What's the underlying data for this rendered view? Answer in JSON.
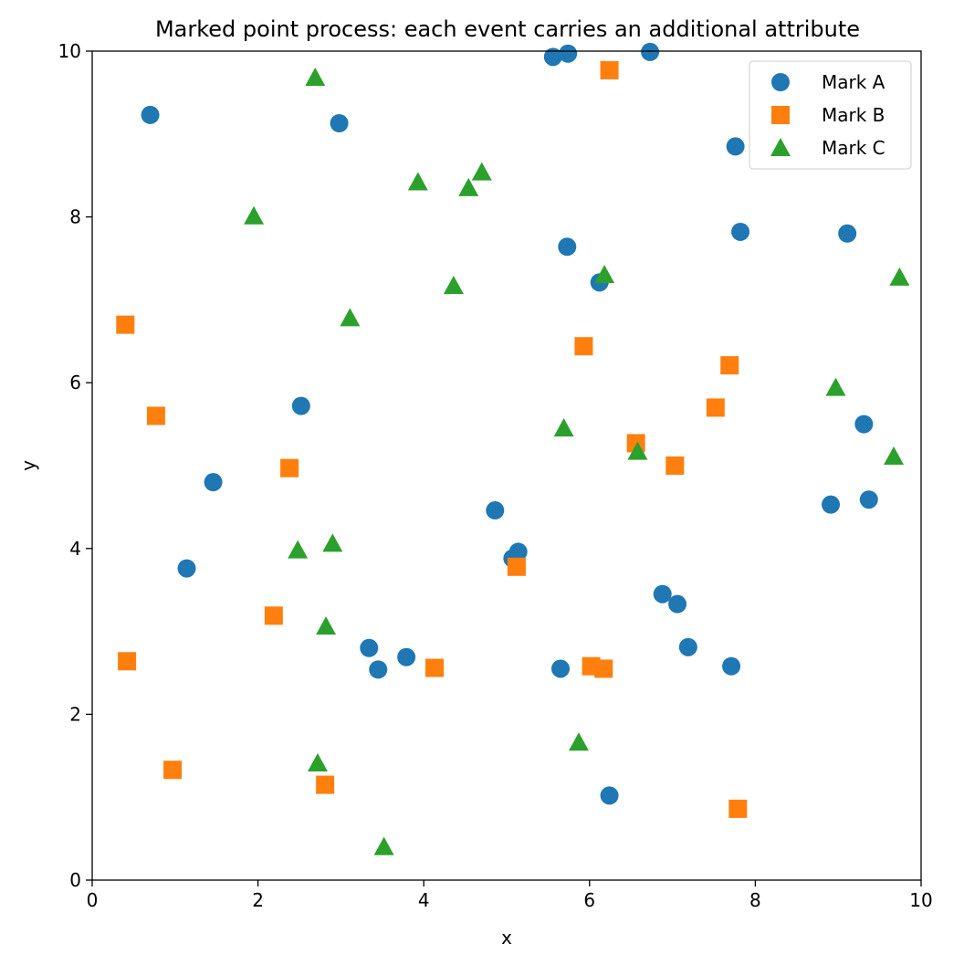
{
  "chart_data": {
    "type": "scatter",
    "title": "Marked point process: each event carries an additional attribute",
    "xlabel": "x",
    "ylabel": "y",
    "xlim": [
      0,
      10
    ],
    "ylim": [
      0,
      10
    ],
    "xticks": [
      "0",
      "2",
      "4",
      "6",
      "8",
      "10"
    ],
    "yticks": [
      "0",
      "2",
      "4",
      "6",
      "8",
      "10"
    ],
    "grid": false,
    "legend_position": "top-right",
    "series": [
      {
        "name": "Mark A",
        "marker": "circle",
        "color": "#1f77b4",
        "points": [
          [
            0.7,
            9.23
          ],
          [
            2.98,
            9.13
          ],
          [
            5.56,
            9.93
          ],
          [
            5.74,
            9.97
          ],
          [
            6.73,
            9.99
          ],
          [
            7.76,
            8.85
          ],
          [
            7.82,
            7.82
          ],
          [
            9.11,
            7.8
          ],
          [
            5.73,
            7.64
          ],
          [
            6.12,
            7.21
          ],
          [
            2.52,
            5.72
          ],
          [
            1.46,
            4.8
          ],
          [
            1.14,
            3.76
          ],
          [
            4.86,
            4.46
          ],
          [
            5.07,
            3.88
          ],
          [
            5.14,
            3.96
          ],
          [
            9.31,
            5.5
          ],
          [
            8.91,
            4.53
          ],
          [
            9.37,
            4.59
          ],
          [
            6.88,
            3.45
          ],
          [
            7.06,
            3.33
          ],
          [
            7.19,
            2.81
          ],
          [
            7.71,
            2.58
          ],
          [
            3.34,
            2.8
          ],
          [
            3.45,
            2.54
          ],
          [
            3.79,
            2.69
          ],
          [
            5.65,
            2.55
          ],
          [
            6.24,
            1.02
          ]
        ]
      },
      {
        "name": "Mark B",
        "marker": "square",
        "color": "#ff7f0e",
        "points": [
          [
            6.24,
            9.77
          ],
          [
            0.4,
            6.7
          ],
          [
            0.77,
            5.6
          ],
          [
            2.38,
            4.97
          ],
          [
            5.93,
            6.44
          ],
          [
            7.69,
            6.21
          ],
          [
            7.52,
            5.7
          ],
          [
            6.56,
            5.27
          ],
          [
            7.03,
            5.0
          ],
          [
            5.12,
            3.78
          ],
          [
            2.19,
            3.19
          ],
          [
            0.42,
            2.64
          ],
          [
            4.13,
            2.56
          ],
          [
            6.02,
            2.58
          ],
          [
            6.17,
            2.55
          ],
          [
            0.97,
            1.33
          ],
          [
            2.81,
            1.15
          ],
          [
            7.79,
            0.86
          ]
        ]
      },
      {
        "name": "Mark C",
        "marker": "triangle",
        "color": "#2ca02c",
        "points": [
          [
            2.69,
            9.68
          ],
          [
            1.95,
            8.01
          ],
          [
            3.93,
            8.42
          ],
          [
            4.54,
            8.35
          ],
          [
            4.7,
            8.54
          ],
          [
            3.11,
            6.78
          ],
          [
            4.36,
            7.17
          ],
          [
            6.18,
            7.3
          ],
          [
            9.74,
            7.27
          ],
          [
            8.97,
            5.94
          ],
          [
            9.67,
            5.11
          ],
          [
            5.69,
            5.45
          ],
          [
            6.58,
            5.17
          ],
          [
            2.48,
            3.98
          ],
          [
            2.9,
            4.06
          ],
          [
            2.82,
            3.06
          ],
          [
            2.72,
            1.41
          ],
          [
            5.87,
            1.66
          ],
          [
            3.52,
            0.4
          ]
        ]
      }
    ]
  }
}
